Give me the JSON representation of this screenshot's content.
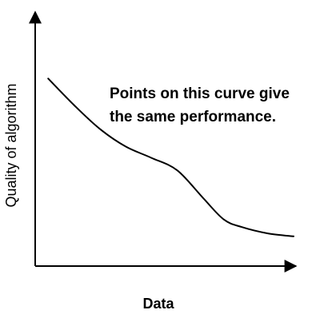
{
  "chart_data": {
    "type": "line",
    "title": "",
    "xlabel": "Data",
    "ylabel": "Quality of algorithm",
    "annotation": {
      "lines": [
        "Points on this curve give",
        "the same performance."
      ]
    },
    "grid": false,
    "legend": "none",
    "xlim": [
      0,
      10
    ],
    "ylim": [
      0,
      10
    ],
    "series": [
      {
        "x": [
          0.5,
          1.5,
          2.5,
          3.5,
          4.5,
          5.5,
          6.5,
          7.3,
          8.0,
          9.0,
          10.0
        ],
        "y": [
          7.45,
          6.4,
          5.45,
          4.75,
          4.3,
          3.8,
          2.7,
          1.85,
          1.55,
          1.3,
          1.18
        ]
      }
    ],
    "colors": {
      "line": "#000000",
      "axis": "#000000"
    }
  }
}
